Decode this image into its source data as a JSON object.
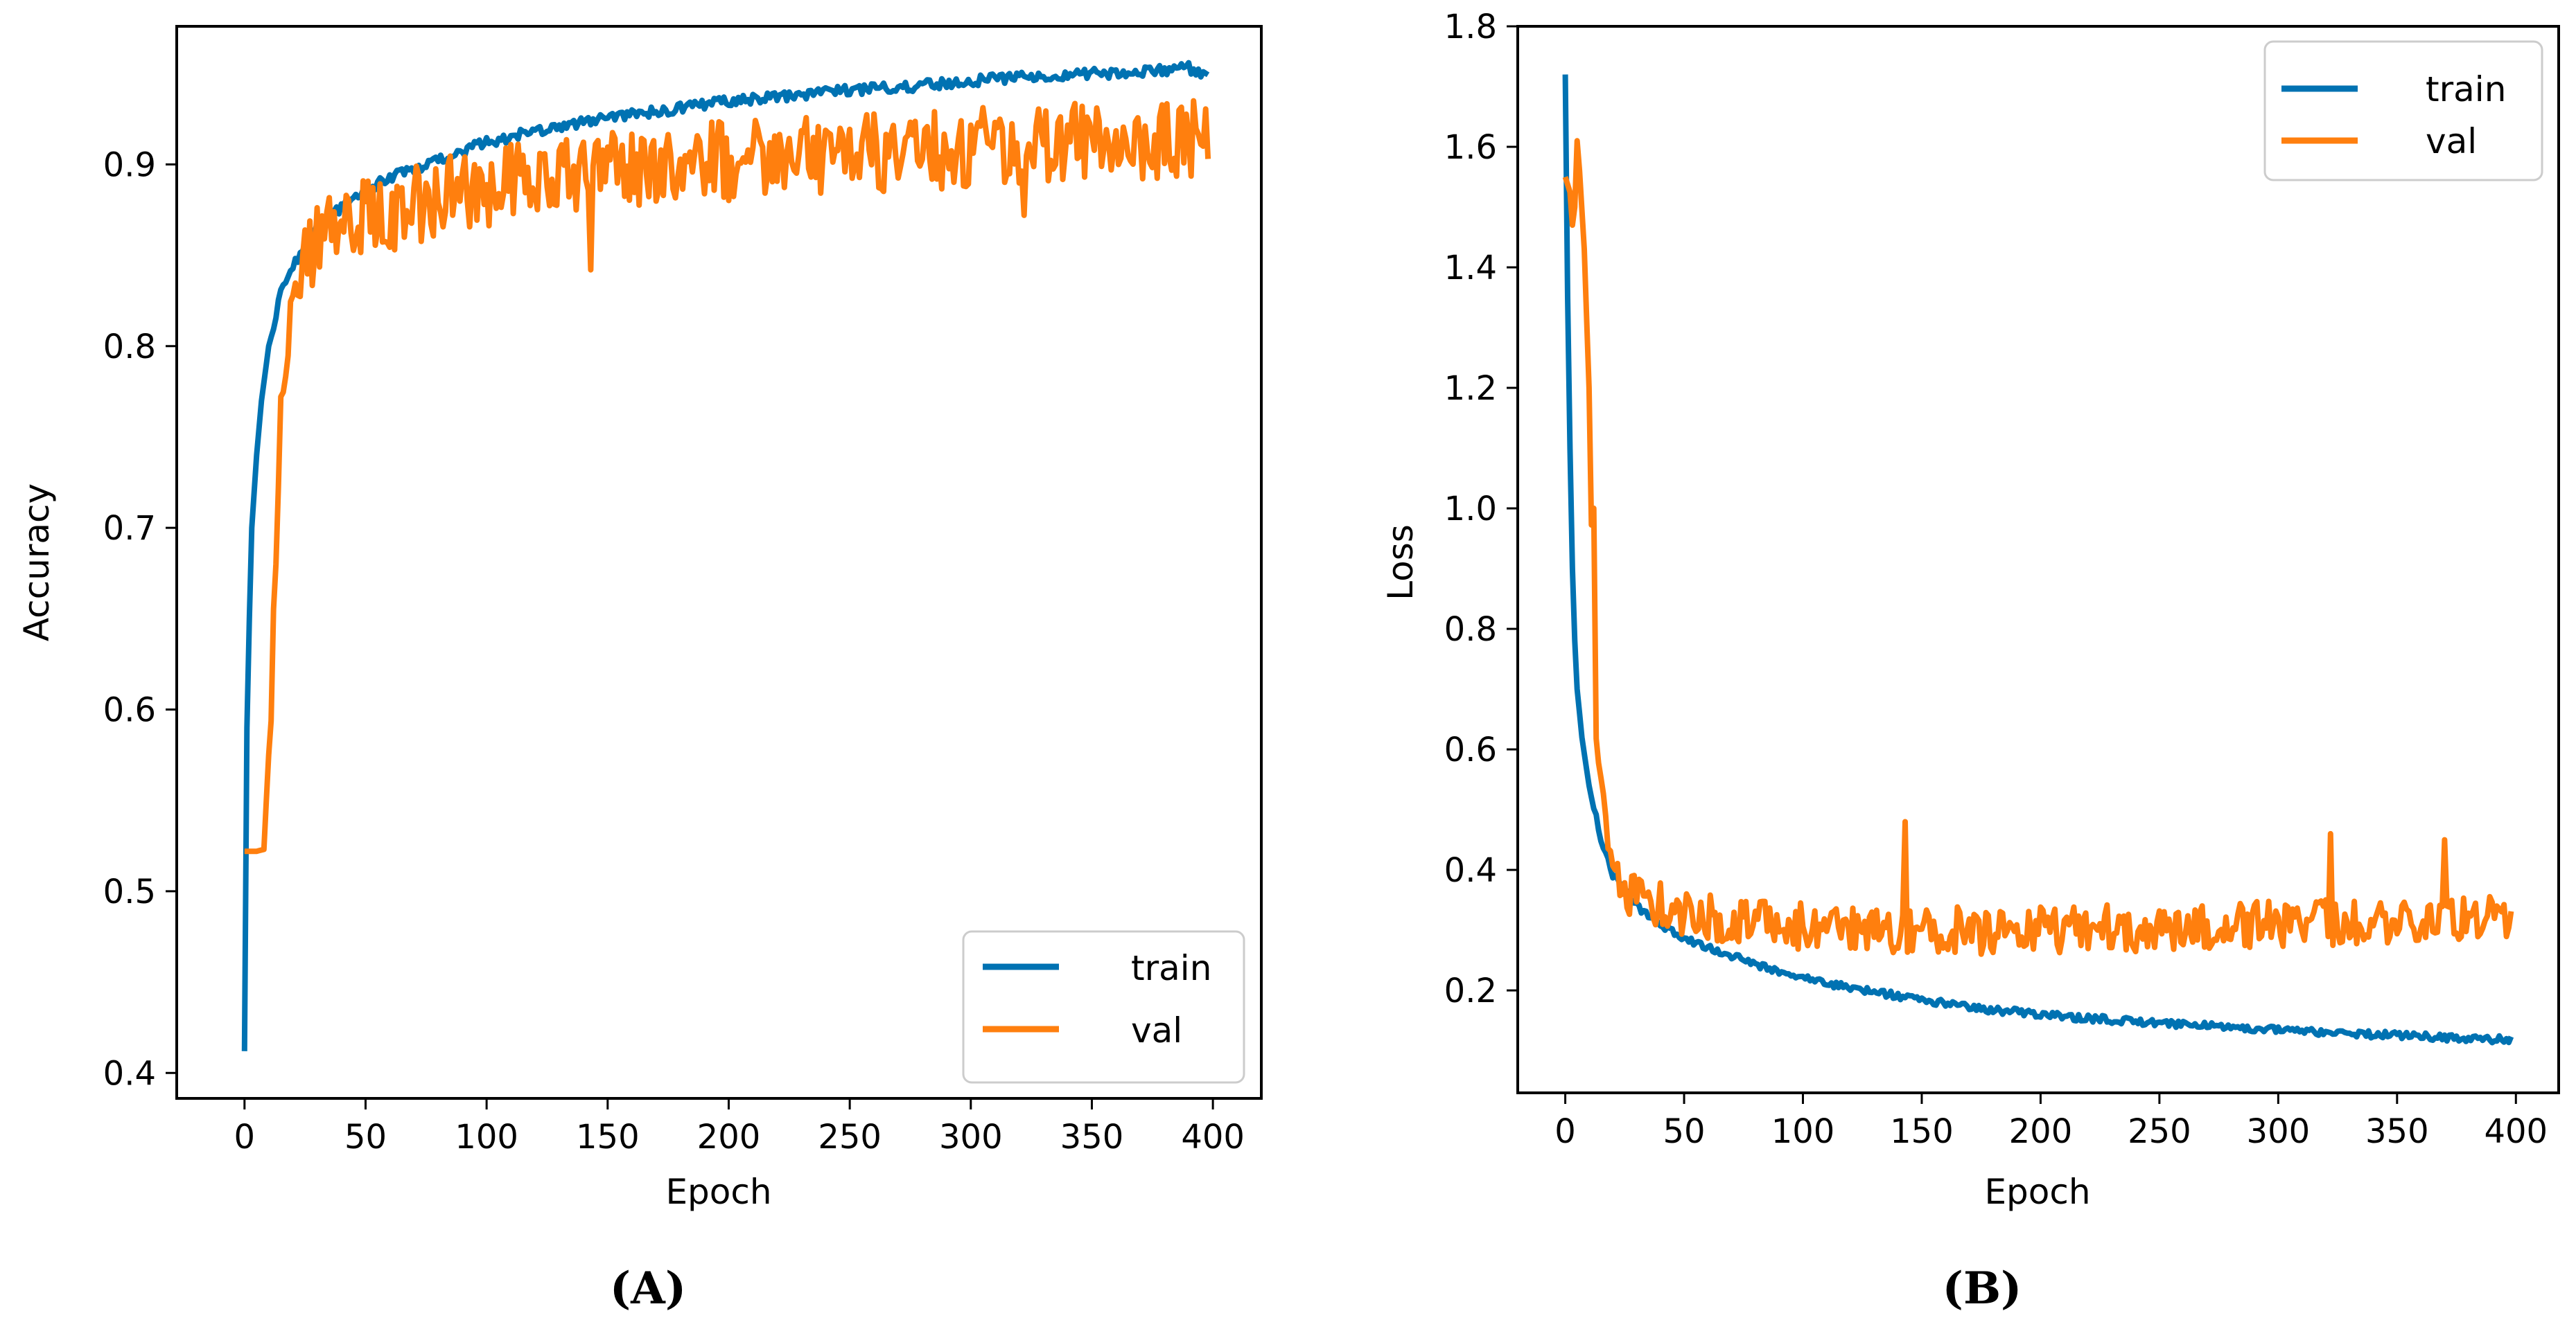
{
  "chart_data": [
    {
      "type": "line",
      "panel_label": "(A)",
      "xlabel": "Epoch",
      "ylabel": "Accuracy",
      "xlim": [
        -28,
        420
      ],
      "ylim": [
        0.386,
        0.976
      ],
      "xticks": [
        0,
        50,
        100,
        150,
        200,
        250,
        300,
        350,
        400
      ],
      "yticks": [
        0.4,
        0.5,
        0.6,
        0.7,
        0.8,
        0.9
      ],
      "grid": false,
      "legend_position": "lower-right",
      "noise_seed": 7,
      "series": [
        {
          "name": "train",
          "color": "#0072B2",
          "noise": 0.003,
          "points": [
            [
              0,
              0.412
            ],
            [
              1,
              0.59
            ],
            [
              2,
              0.65
            ],
            [
              3,
              0.7
            ],
            [
              5,
              0.74
            ],
            [
              7,
              0.77
            ],
            [
              10,
              0.8
            ],
            [
              15,
              0.83
            ],
            [
              20,
              0.845
            ],
            [
              30,
              0.865
            ],
            [
              40,
              0.877
            ],
            [
              50,
              0.885
            ],
            [
              60,
              0.893
            ],
            [
              75,
              0.9
            ],
            [
              100,
              0.912
            ],
            [
              125,
              0.92
            ],
            [
              150,
              0.926
            ],
            [
              175,
              0.93
            ],
            [
              200,
              0.935
            ],
            [
              225,
              0.938
            ],
            [
              250,
              0.941
            ],
            [
              275,
              0.943
            ],
            [
              300,
              0.946
            ],
            [
              325,
              0.948
            ],
            [
              350,
              0.95
            ],
            [
              375,
              0.951
            ],
            [
              390,
              0.953
            ],
            [
              398,
              0.95
            ]
          ]
        },
        {
          "name": "val",
          "color": "#FF7F0E",
          "noise": 0.022,
          "spikes": [
            [
              143,
              0.842
            ],
            [
              322,
              0.872
            ],
            [
              392,
              0.935
            ],
            [
              398,
              0.903
            ]
          ],
          "points": [
            [
              0,
              0.522
            ],
            [
              5,
              0.522
            ],
            [
              8,
              0.523
            ],
            [
              9,
              0.55
            ],
            [
              11,
              0.6
            ],
            [
              13,
              0.68
            ],
            [
              15,
              0.78
            ],
            [
              17,
              0.8
            ],
            [
              20,
              0.82
            ],
            [
              25,
              0.845
            ],
            [
              30,
              0.855
            ],
            [
              40,
              0.865
            ],
            [
              50,
              0.87
            ],
            [
              75,
              0.88
            ],
            [
              100,
              0.888
            ],
            [
              125,
              0.893
            ],
            [
              150,
              0.897
            ],
            [
              175,
              0.9
            ],
            [
              200,
              0.902
            ],
            [
              250,
              0.905
            ],
            [
              300,
              0.909
            ],
            [
              350,
              0.912
            ],
            [
              398,
              0.915
            ]
          ]
        }
      ]
    },
    {
      "type": "line",
      "panel_label": "(B)",
      "xlabel": "Epoch",
      "ylabel": "Loss",
      "xlim": [
        -20,
        418
      ],
      "ylim": [
        0.03,
        1.8
      ],
      "xticks": [
        0,
        50,
        100,
        150,
        200,
        250,
        300,
        350,
        400
      ],
      "yticks": [
        0.2,
        0.4,
        0.6,
        0.8,
        1.0,
        1.2,
        1.4,
        1.6,
        1.8
      ],
      "grid": false,
      "legend_position": "upper-right",
      "noise_seed": 11,
      "series": [
        {
          "name": "train",
          "color": "#0072B2",
          "noise": 0.006,
          "points": [
            [
              0,
              1.72
            ],
            [
              1,
              1.35
            ],
            [
              2,
              1.1
            ],
            [
              3,
              0.9
            ],
            [
              4,
              0.78
            ],
            [
              5,
              0.7
            ],
            [
              7,
              0.62
            ],
            [
              10,
              0.54
            ],
            [
              15,
              0.45
            ],
            [
              20,
              0.39
            ],
            [
              30,
              0.34
            ],
            [
              40,
              0.31
            ],
            [
              50,
              0.285
            ],
            [
              75,
              0.25
            ],
            [
              100,
              0.22
            ],
            [
              125,
              0.2
            ],
            [
              150,
              0.185
            ],
            [
              175,
              0.17
            ],
            [
              200,
              0.16
            ],
            [
              250,
              0.145
            ],
            [
              300,
              0.135
            ],
            [
              350,
              0.125
            ],
            [
              398,
              0.118
            ]
          ]
        },
        {
          "name": "val",
          "color": "#FF7F0E",
          "noise": 0.04,
          "spikes": [
            [
              3,
              1.47
            ],
            [
              5,
              1.61
            ],
            [
              12,
              1.0
            ],
            [
              143,
              0.48
            ],
            [
              322,
              0.46
            ],
            [
              370,
              0.45
            ]
          ],
          "points": [
            [
              0,
              1.55
            ],
            [
              4,
              1.5
            ],
            [
              6,
              1.56
            ],
            [
              8,
              1.43
            ],
            [
              10,
              1.2
            ],
            [
              11,
              0.98
            ],
            [
              13,
              0.65
            ],
            [
              15,
              0.52
            ],
            [
              18,
              0.43
            ],
            [
              20,
              0.38
            ],
            [
              25,
              0.36
            ],
            [
              30,
              0.35
            ],
            [
              40,
              0.34
            ],
            [
              50,
              0.33
            ],
            [
              75,
              0.31
            ],
            [
              100,
              0.305
            ],
            [
              150,
              0.3
            ],
            [
              200,
              0.3
            ],
            [
              250,
              0.305
            ],
            [
              300,
              0.31
            ],
            [
              350,
              0.315
            ],
            [
              398,
              0.32
            ]
          ]
        }
      ]
    }
  ]
}
